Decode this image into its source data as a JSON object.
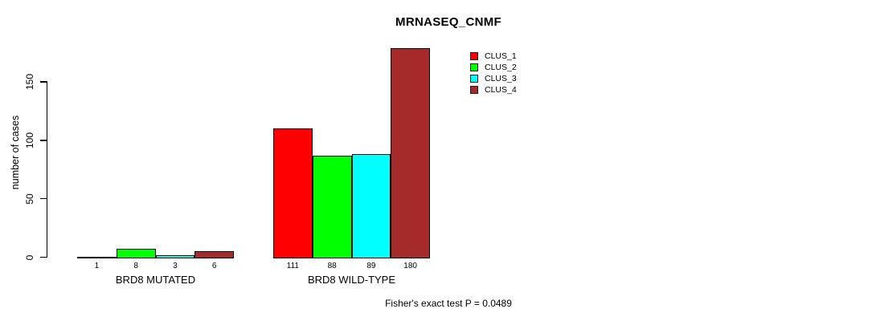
{
  "chart": {
    "title": "MRNASEQ_CNMF",
    "ylabel": "number of cases",
    "footnote": "Fisher's exact test P = 0.0489"
  },
  "chart_data": {
    "type": "bar",
    "title": "MRNASEQ_CNMF",
    "xlabel": "",
    "ylabel": "number of cases",
    "categories": [
      "BRD8 MUTATED",
      "BRD8 WILD-TYPE"
    ],
    "series": [
      {
        "name": "CLUS_1",
        "color": "#ff0000",
        "values": [
          1,
          111
        ]
      },
      {
        "name": "CLUS_2",
        "color": "#00ff00",
        "values": [
          8,
          88
        ]
      },
      {
        "name": "CLUS_3",
        "color": "#00ffff",
        "values": [
          3,
          89
        ]
      },
      {
        "name": "CLUS_4",
        "color": "#a52a2a",
        "values": [
          6,
          180
        ]
      }
    ],
    "bar_value_labels": [
      [
        "1",
        "8",
        "3",
        "6"
      ],
      [
        "111",
        "88",
        "89",
        "180"
      ]
    ],
    "ylim": [
      0,
      180
    ],
    "yticks": [
      0,
      50,
      100,
      150
    ],
    "grid": false,
    "legend_position": "top-right",
    "annotation": "Fisher's exact test P = 0.0489",
    "bar_border_color": "#000000"
  }
}
